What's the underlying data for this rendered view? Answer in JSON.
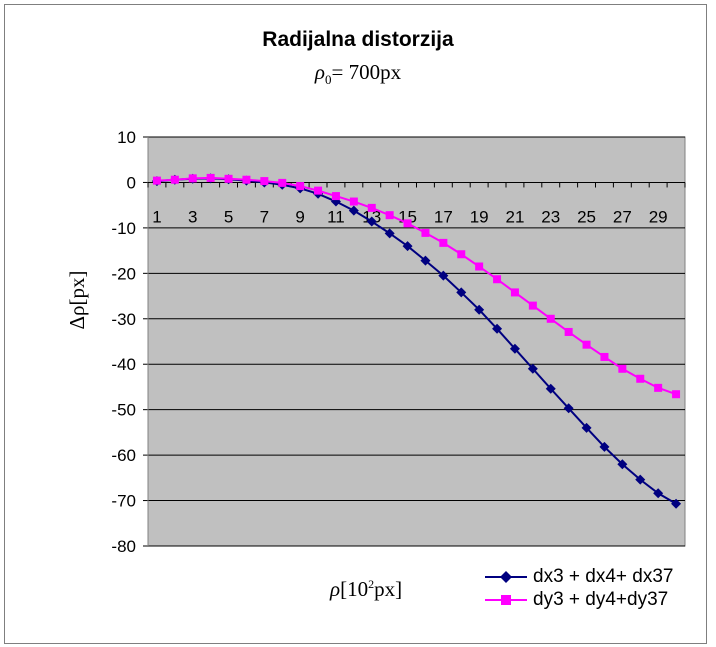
{
  "chart_data": {
    "type": "line",
    "title": "Radijalna distorzija",
    "subtitle_symbol": "ρ",
    "subtitle_sub": "0",
    "subtitle_rest": "= 700px",
    "ylabel": "Δρ[px]",
    "xlabel_symbol": "ρ",
    "xlabel_pre": "[10",
    "xlabel_exp": "2",
    "xlabel_post": "px]",
    "ylim": [
      -80,
      10
    ],
    "yticks": [
      10,
      0,
      -10,
      -20,
      -30,
      -40,
      -50,
      -60,
      -70,
      -80
    ],
    "xlim": [
      0.5,
      30.5
    ],
    "xtick_labels": [
      1,
      3,
      5,
      7,
      9,
      11,
      13,
      15,
      17,
      19,
      21,
      23,
      25,
      27,
      29
    ],
    "grid": true,
    "legend_position": "bottom-right",
    "x": [
      1,
      2,
      3,
      4,
      5,
      6,
      7,
      8,
      9,
      10,
      11,
      12,
      13,
      14,
      15,
      16,
      17,
      18,
      19,
      20,
      21,
      22,
      23,
      24,
      25,
      26,
      27,
      28,
      29,
      30
    ],
    "series": [
      {
        "name": "dx3 + dx4+ dx37",
        "color": "#000080",
        "marker": "diamond",
        "values": [
          0.3,
          0.6,
          0.8,
          0.9,
          0.7,
          0.4,
          0.0,
          -0.5,
          -1.3,
          -2.5,
          -4.2,
          -6.2,
          -8.6,
          -11.2,
          -14.0,
          -17.2,
          -20.5,
          -24.2,
          -28.0,
          -32.2,
          -36.6,
          -41.0,
          -45.4,
          -49.7,
          -54.0,
          -58.2,
          -62.0,
          -65.4,
          -68.4,
          -70.7
        ]
      },
      {
        "name": "dy3 + dy4+dy37",
        "color": "#ff00ff",
        "marker": "square",
        "values": [
          0.4,
          0.6,
          0.9,
          1.0,
          0.8,
          0.6,
          0.3,
          -0.1,
          -0.8,
          -1.8,
          -3.0,
          -4.2,
          -5.6,
          -7.2,
          -9.0,
          -11.1,
          -13.3,
          -15.8,
          -18.5,
          -21.3,
          -24.2,
          -27.1,
          -30.0,
          -32.9,
          -35.7,
          -38.4,
          -41.0,
          -43.2,
          -45.2,
          -46.6
        ]
      }
    ]
  }
}
